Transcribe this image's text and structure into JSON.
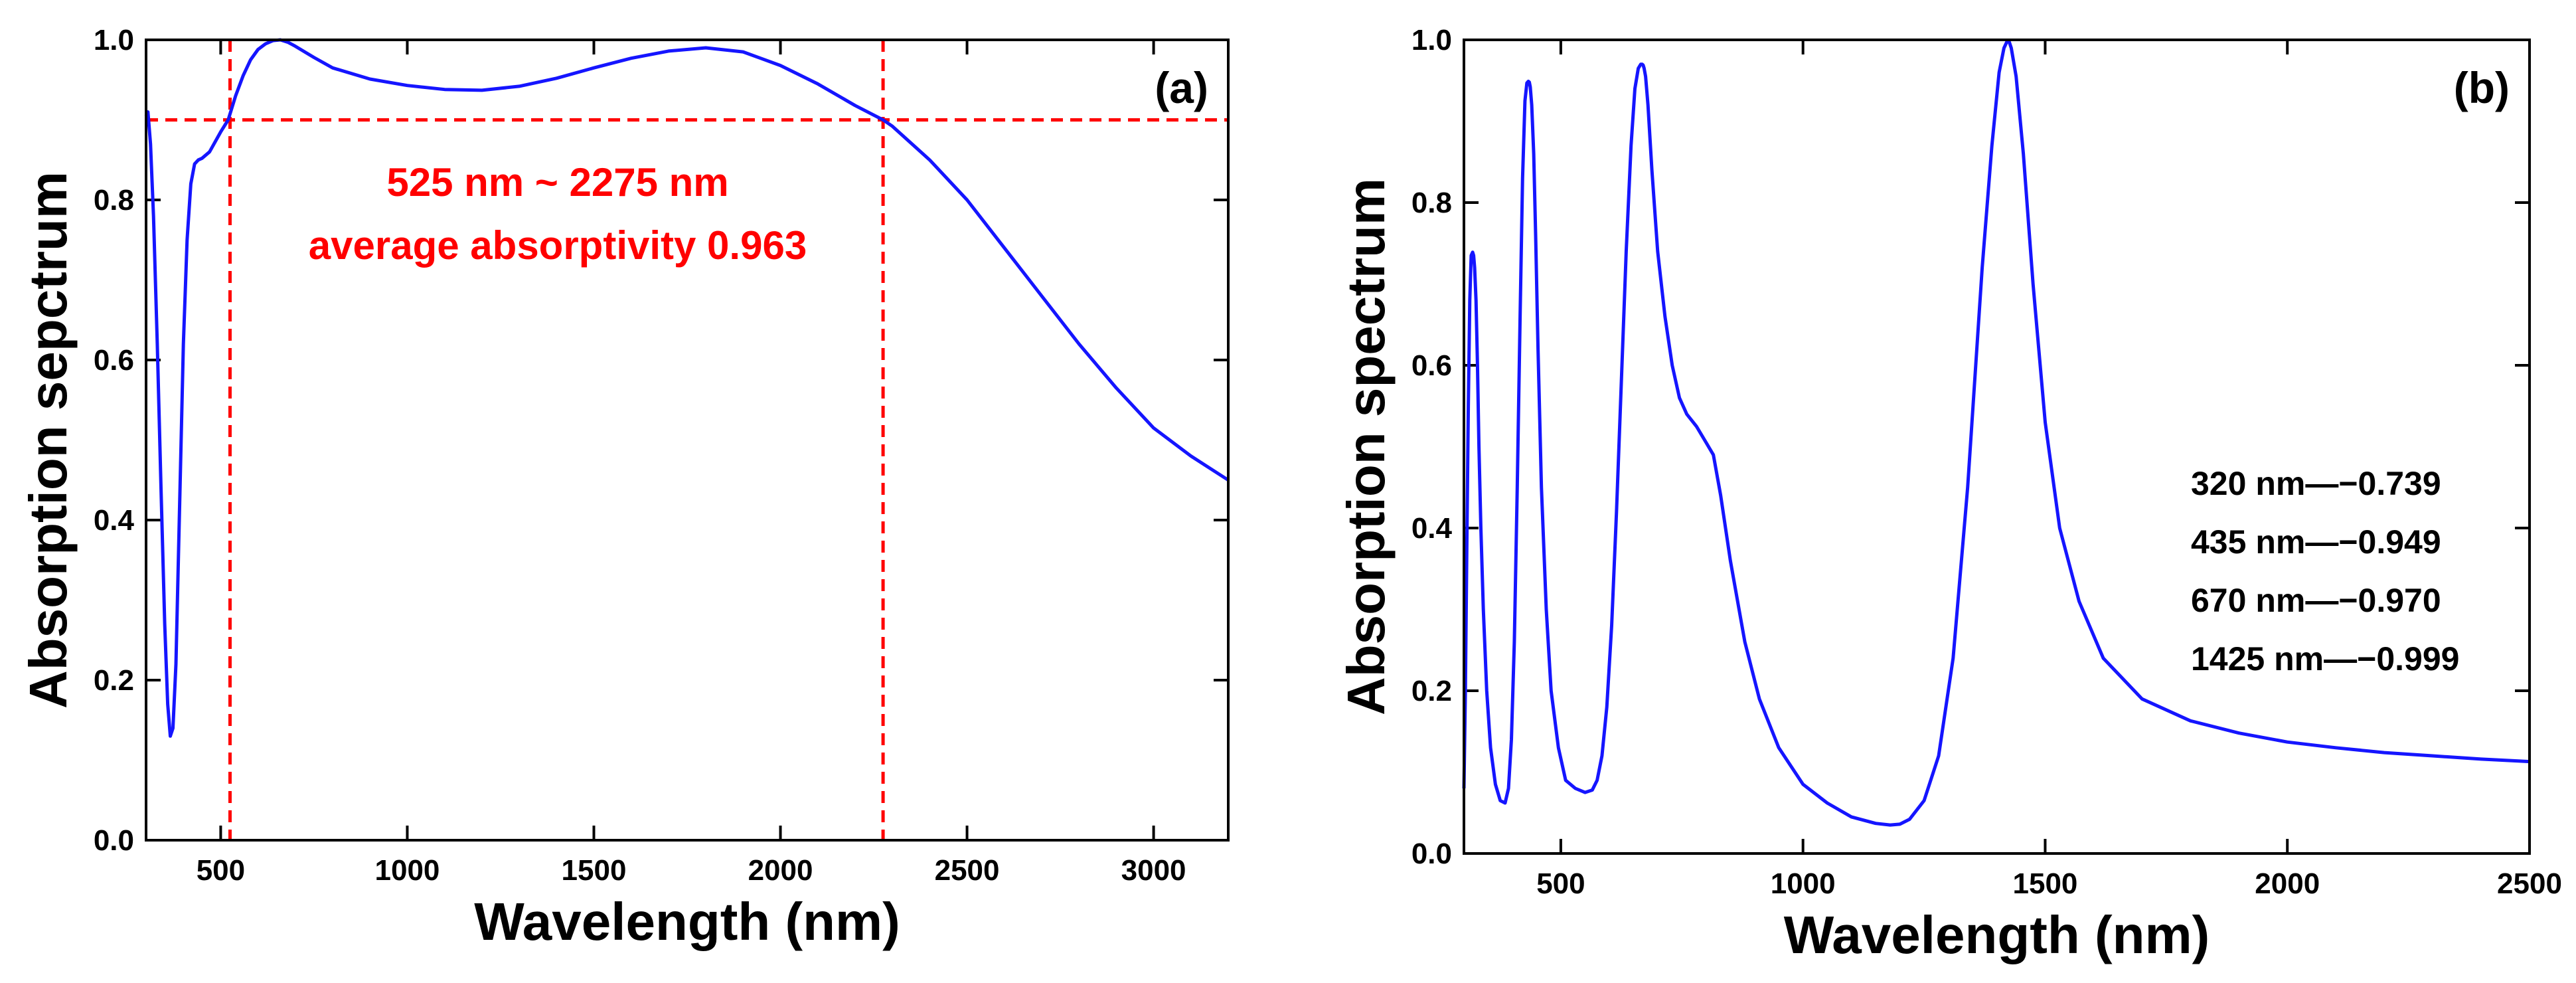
{
  "chart_data": [
    {
      "type": "line",
      "panel_label": "(a)",
      "xlabel": "Wavelength (nm)",
      "ylabel": "Absorption sepctrum",
      "xlim": [
        300,
        3200
      ],
      "ylim": [
        0,
        1.0
      ],
      "x_ticks": [
        "500",
        "1000",
        "1500",
        "2000",
        "2500",
        "3000"
      ],
      "y_ticks": [
        "0.0",
        "0.2",
        "0.4",
        "0.6",
        "0.8",
        "1.0"
      ],
      "series": [
        {
          "name": "absorption",
          "color": "#1515ff",
          "x": [
            300,
            305,
            312,
            320,
            330,
            340,
            350,
            358,
            365,
            372,
            380,
            390,
            400,
            410,
            420,
            430,
            440,
            450,
            470,
            500,
            520,
            540,
            560,
            580,
            600,
            620,
            640,
            660,
            680,
            700,
            750,
            800,
            900,
            1000,
            1100,
            1200,
            1300,
            1400,
            1500,
            1600,
            1700,
            1800,
            1900,
            2000,
            2100,
            2200,
            2275,
            2300,
            2400,
            2500,
            2600,
            2700,
            2800,
            2900,
            3000,
            3100,
            3200
          ],
          "y": [
            0.905,
            0.91,
            0.87,
            0.78,
            0.62,
            0.44,
            0.27,
            0.17,
            0.13,
            0.14,
            0.22,
            0.42,
            0.62,
            0.75,
            0.82,
            0.845,
            0.85,
            0.852,
            0.86,
            0.885,
            0.9,
            0.93,
            0.955,
            0.975,
            0.988,
            0.995,
            0.999,
            1.0,
            0.997,
            0.992,
            0.978,
            0.965,
            0.951,
            0.943,
            0.938,
            0.937,
            0.942,
            0.952,
            0.965,
            0.977,
            0.986,
            0.99,
            0.985,
            0.968,
            0.945,
            0.918,
            0.9,
            0.892,
            0.85,
            0.8,
            0.74,
            0.68,
            0.62,
            0.565,
            0.515,
            0.48,
            0.45
          ]
        }
      ],
      "vlines": [
        525,
        2275
      ],
      "hline": 0.9,
      "annotations": [
        "525 nm ~ 2275 nm",
        "average absorptivity 0.963"
      ]
    },
    {
      "type": "line",
      "panel_label": "(b)",
      "xlabel": "Wavelength (nm)",
      "ylabel": "Absorption spectrum",
      "xlim": [
        300,
        2500
      ],
      "ylim": [
        0,
        1.0
      ],
      "x_ticks": [
        "500",
        "1000",
        "1500",
        "2000",
        "2500"
      ],
      "y_ticks": [
        "0.0",
        "0.2",
        "0.4",
        "0.6",
        "0.8",
        "1.0"
      ],
      "series": [
        {
          "name": "absorption",
          "color": "#1515ff",
          "x": [
            300,
            303,
            306,
            309,
            312,
            315,
            318,
            320,
            322,
            325,
            328,
            331,
            335,
            340,
            347,
            355,
            365,
            375,
            385,
            392,
            398,
            404,
            410,
            416,
            421,
            426,
            430,
            433,
            435,
            437,
            440,
            444,
            448,
            453,
            460,
            470,
            480,
            495,
            510,
            530,
            550,
            565,
            575,
            585,
            595,
            605,
            615,
            625,
            635,
            645,
            653,
            660,
            665,
            668,
            670,
            672,
            675,
            680,
            688,
            700,
            715,
            730,
            745,
            760,
            780,
            800,
            815,
            830,
            850,
            880,
            910,
            950,
            1000,
            1050,
            1100,
            1150,
            1180,
            1200,
            1220,
            1250,
            1280,
            1310,
            1340,
            1370,
            1390,
            1405,
            1415,
            1422,
            1425,
            1430,
            1440,
            1455,
            1475,
            1500,
            1530,
            1570,
            1620,
            1700,
            1800,
            1900,
            2000,
            2100,
            2200,
            2300,
            2400,
            2500
          ],
          "y": [
            0.08,
            0.2,
            0.38,
            0.55,
            0.68,
            0.735,
            0.739,
            0.735,
            0.72,
            0.68,
            0.6,
            0.5,
            0.4,
            0.3,
            0.2,
            0.13,
            0.085,
            0.065,
            0.062,
            0.08,
            0.14,
            0.26,
            0.45,
            0.66,
            0.83,
            0.925,
            0.947,
            0.949,
            0.948,
            0.942,
            0.92,
            0.86,
            0.76,
            0.62,
            0.45,
            0.3,
            0.2,
            0.13,
            0.09,
            0.08,
            0.075,
            0.078,
            0.09,
            0.12,
            0.18,
            0.28,
            0.42,
            0.58,
            0.74,
            0.87,
            0.94,
            0.965,
            0.97,
            0.97,
            0.969,
            0.965,
            0.955,
            0.92,
            0.84,
            0.74,
            0.66,
            0.6,
            0.56,
            0.54,
            0.525,
            0.505,
            0.49,
            0.44,
            0.36,
            0.26,
            0.19,
            0.13,
            0.085,
            0.062,
            0.045,
            0.037,
            0.035,
            0.036,
            0.042,
            0.065,
            0.12,
            0.24,
            0.45,
            0.72,
            0.87,
            0.96,
            0.99,
            0.999,
            0.999,
            0.99,
            0.955,
            0.86,
            0.7,
            0.53,
            0.4,
            0.31,
            0.24,
            0.19,
            0.163,
            0.148,
            0.137,
            0.13,
            0.124,
            0.12,
            0.116,
            0.113
          ]
        }
      ],
      "annotations": [
        "320 nm—−0.739",
        "435 nm—−0.949",
        "670 nm—−0.970",
        "1425 nm—−0.999"
      ]
    }
  ]
}
